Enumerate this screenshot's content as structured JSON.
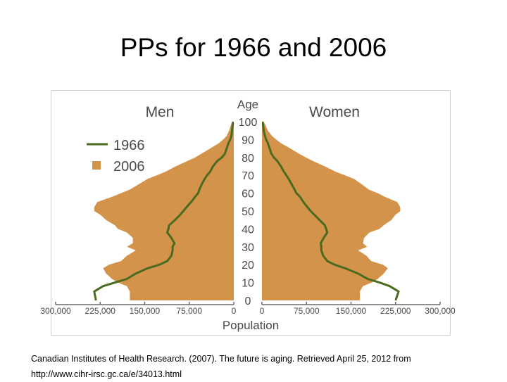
{
  "slide": {
    "title": "PPs for 1966 and 2006",
    "citation": "Canadian Institutes of Health Research. (2007). The future is aging. Retrieved April 25, 2012 from",
    "citation_url": "http://www.cihr-irsc.gc.ca/e/34013.html"
  },
  "colors": {
    "area_2006": "#d4934a",
    "line_1966": "#4a6b1f",
    "age_bar": "#ffffff",
    "text": "#4a4a4a"
  },
  "chart_data": {
    "type": "area",
    "subtype": "population-pyramid",
    "men_label": "Men",
    "women_label": "Women",
    "age_axis_label": "Age",
    "x_axis_label": "Population",
    "age_ticks": [
      0,
      10,
      20,
      30,
      40,
      50,
      60,
      70,
      80,
      90,
      100
    ],
    "x_ticks": [
      0,
      75000,
      150000,
      225000,
      300000
    ],
    "x_tick_labels": [
      "0",
      "75,000",
      "150,000",
      "225,000",
      "300,000"
    ],
    "xlim": [
      0,
      300000
    ],
    "ylim": [
      0,
      100
    ],
    "legend": {
      "position": "top-left",
      "entries": [
        "1966",
        "2006"
      ]
    },
    "ages": [
      0,
      5,
      8,
      10,
      12,
      15,
      18,
      20,
      22,
      25,
      28,
      30,
      32,
      35,
      38,
      40,
      42,
      45,
      48,
      50,
      52,
      55,
      58,
      60,
      62,
      65,
      68,
      70,
      72,
      75,
      78,
      80,
      82,
      85,
      88,
      90,
      92,
      95,
      98,
      100
    ],
    "series": [
      {
        "name": "2006",
        "style": "area",
        "men": [
          175000,
          175000,
          180000,
          195000,
          205000,
          215000,
          220000,
          210000,
          190000,
          180000,
          165000,
          180000,
          170000,
          170000,
          180000,
          195000,
          200000,
          215000,
          225000,
          235000,
          235000,
          230000,
          205000,
          190000,
          175000,
          160000,
          145000,
          130000,
          115000,
          98000,
          78000,
          65000,
          55000,
          40000,
          25000,
          18000,
          12000,
          8000,
          5000,
          3000
        ],
        "women": [
          165000,
          165000,
          170000,
          185000,
          195000,
          205000,
          212000,
          204000,
          184000,
          176000,
          162000,
          177000,
          170000,
          172000,
          181000,
          198000,
          205000,
          218000,
          225000,
          233000,
          233000,
          228000,
          207000,
          195000,
          180000,
          168000,
          155000,
          140000,
          124000,
          106000,
          86000,
          74000,
          63000,
          48000,
          32000,
          24000,
          17000,
          10000,
          6000,
          3000
        ]
      },
      {
        "name": "1966",
        "style": "line",
        "men": [
          232000,
          235000,
          220000,
          200000,
          180000,
          165000,
          145000,
          125000,
          112000,
          105000,
          103000,
          103000,
          100000,
          105000,
          112000,
          110000,
          109000,
          99000,
          90000,
          85000,
          80000,
          72000,
          65000,
          60000,
          58000,
          54000,
          49000,
          45000,
          40000,
          35000,
          28000,
          20000,
          15000,
          12000,
          9000,
          6000,
          4000,
          3000,
          2000,
          1000
        ],
        "women": [
          225000,
          230000,
          215000,
          198000,
          178000,
          162000,
          140000,
          122000,
          110000,
          103000,
          100000,
          100000,
          99000,
          104000,
          110000,
          108000,
          106000,
          97000,
          88000,
          82000,
          77000,
          70000,
          64000,
          58000,
          55000,
          50000,
          45000,
          41000,
          37000,
          32000,
          26000,
          20000,
          16000,
          13000,
          10000,
          7000,
          5000,
          3000,
          2000,
          1000
        ]
      }
    ]
  }
}
